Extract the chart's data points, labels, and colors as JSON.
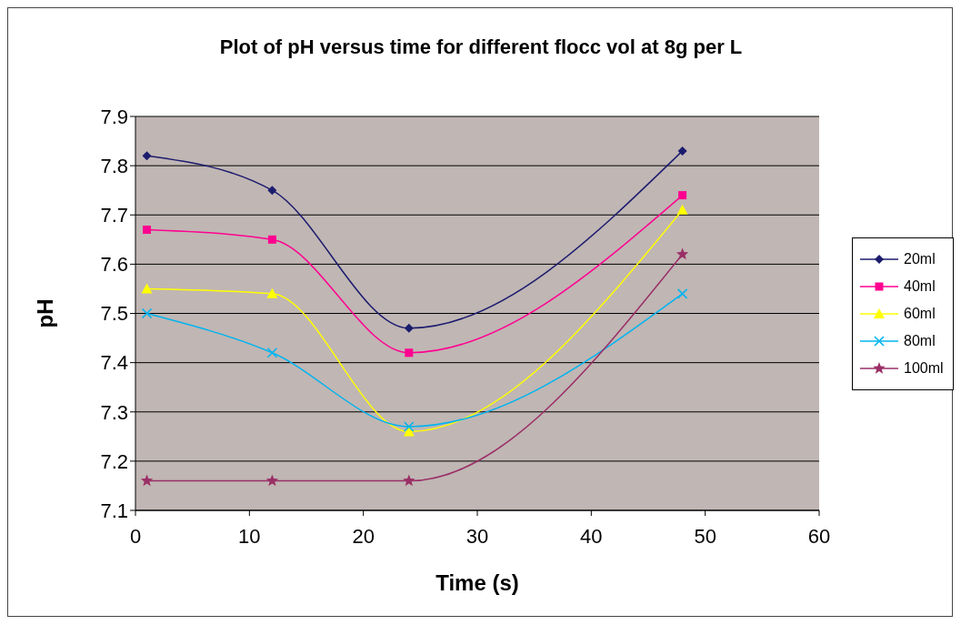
{
  "chart_data": {
    "type": "line",
    "title": "Plot of pH versus time for different flocc vol at 8g per L",
    "xlabel": "Time (s)",
    "ylabel": "pH",
    "x": [
      1,
      12,
      24,
      48
    ],
    "series": [
      {
        "name": "20ml",
        "color": "#1c1c6e",
        "marker": "diamond",
        "values": [
          7.82,
          7.75,
          7.47,
          7.83
        ]
      },
      {
        "name": "40ml",
        "color": "#ff0090",
        "marker": "square",
        "values": [
          7.67,
          7.65,
          7.42,
          7.74
        ]
      },
      {
        "name": "60ml",
        "color": "#ffff00",
        "marker": "triangle",
        "values": [
          7.55,
          7.54,
          7.26,
          7.71
        ]
      },
      {
        "name": "80ml",
        "color": "#00b4f0",
        "marker": "cross",
        "values": [
          7.5,
          7.42,
          7.27,
          7.54
        ]
      },
      {
        "name": "100ml",
        "color": "#9a2f66",
        "marker": "star",
        "values": [
          7.16,
          7.16,
          7.16,
          7.62
        ]
      }
    ],
    "xlim": [
      0,
      60
    ],
    "xticks": [
      0,
      10,
      20,
      30,
      40,
      50,
      60
    ],
    "ylim": [
      7.1,
      7.9
    ],
    "yticks": [
      7.1,
      7.2,
      7.3,
      7.4,
      7.5,
      7.6,
      7.7,
      7.8,
      7.9
    ],
    "grid": "y",
    "legend": "right"
  }
}
